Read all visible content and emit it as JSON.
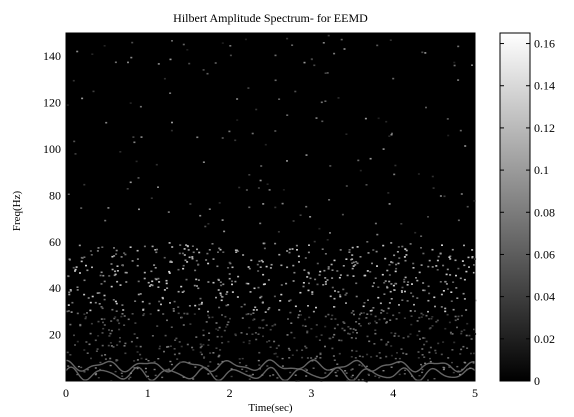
{
  "chart_data": {
    "type": "heatmap",
    "title": "Hilbert Amplitude Spectrum- for EEMD",
    "xlabel": "Time(sec)",
    "ylabel": "Freq(Hz)",
    "xlim": [
      0,
      5
    ],
    "ylim": [
      0,
      150
    ],
    "x_ticks": [
      0,
      1,
      2,
      3,
      4,
      5
    ],
    "y_ticks": [
      20,
      40,
      60,
      80,
      100,
      120,
      140
    ],
    "colormap": "gray",
    "colorbar": {
      "range": [
        0,
        0.165
      ],
      "ticks": [
        0,
        0.02,
        0.04,
        0.06,
        0.08,
        0.1,
        0.12,
        0.14,
        0.16
      ],
      "tick_labels": [
        "0",
        "0.02",
        "0.04",
        "0.06",
        "0.08",
        "0.1",
        "0.12",
        "0.14",
        "0.16"
      ]
    },
    "bands": [
      {
        "freq_range": [
          30,
          60
        ],
        "intensity": [
          0.06,
          0.14
        ]
      },
      {
        "freq_range": [
          10,
          30
        ],
        "intensity": [
          0.03,
          0.08
        ]
      },
      {
        "freq_range": [
          0,
          10
        ],
        "intensity": [
          0.04,
          0.09
        ]
      },
      {
        "freq_range": [
          60,
          150
        ],
        "intensity": [
          0.02,
          0.1
        ]
      }
    ],
    "grid": false,
    "legend": "none"
  }
}
